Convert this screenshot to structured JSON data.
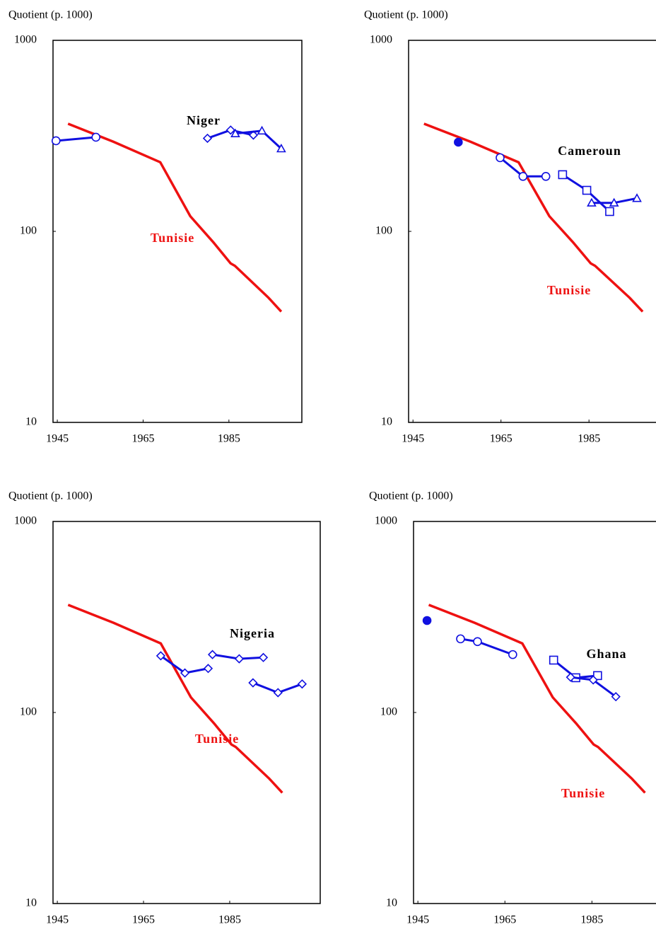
{
  "chart_data": [
    {
      "type": "line",
      "y_label": "Quotient (p. 1000)",
      "log_scale": true,
      "ylim": [
        10,
        1000
      ],
      "yticks": [
        10,
        100,
        1000
      ],
      "xlim": [
        1944,
        2002
      ],
      "xticks": [
        1945,
        1965,
        1985
      ],
      "annotations": [
        "Niger",
        "Tunisie"
      ],
      "series": [
        {
          "color": "#ee1111",
          "marker": "none",
          "x": [
            1947.5,
            1958,
            1969,
            1976,
            1981.5,
            1985.4,
            1986.4,
            1994.2,
            1997.2
          ],
          "values": [
            366,
            295,
            230,
            120,
            87,
            68,
            66,
            45,
            38
          ]
        },
        {
          "color": "#1010e0",
          "marker": "circle",
          "x": [
            1944.7,
            1954
          ],
          "values": [
            298,
            311
          ]
        },
        {
          "color": "#1010e0",
          "marker": "diamond",
          "x": [
            1980,
            1985.4,
            1990.7
          ],
          "values": [
            307,
            339,
            319
          ]
        },
        {
          "color": "#1010e0",
          "marker": "triangle",
          "x": [
            1986.5,
            1992.7,
            1997.2
          ],
          "values": [
            325,
            336,
            271
          ]
        }
      ]
    },
    {
      "type": "line",
      "y_label": "Quotient (p. 1000)",
      "log_scale": true,
      "ylim": [
        10,
        1000
      ],
      "yticks": [
        10,
        100,
        1000
      ],
      "xlim": [
        1944,
        2002
      ],
      "xticks": [
        1945,
        1965,
        1985
      ],
      "annotations": [
        "Cameroun",
        "Tunisie"
      ],
      "series": [
        {
          "color": "#ee1111",
          "marker": "none",
          "x": [
            1947.5,
            1958,
            1969,
            1976,
            1981.5,
            1985.4,
            1986.4,
            1994.2,
            1997.2
          ],
          "values": [
            366,
            295,
            230,
            120,
            87,
            68,
            66,
            45,
            38
          ]
        },
        {
          "color": "#1010e0",
          "marker": "filled-circle",
          "x": [
            1955.3
          ],
          "values": [
            293
          ]
        },
        {
          "color": "#1010e0",
          "marker": "circle",
          "x": [
            1964.8,
            1970,
            1975.2
          ],
          "values": [
            243,
            194,
            194
          ]
        },
        {
          "color": "#1010e0",
          "marker": "square",
          "x": [
            1979,
            1984.5,
            1989.7
          ],
          "values": [
            198,
            164,
            127
          ]
        },
        {
          "color": "#1010e0",
          "marker": "triangle",
          "x": [
            1985.6,
            1990.7,
            1995.9
          ],
          "values": [
            141,
            141,
            149
          ]
        }
      ]
    },
    {
      "type": "line",
      "y_label": "Quotient (p. 1000)",
      "log_scale": true,
      "ylim": [
        10,
        1000
      ],
      "yticks": [
        10,
        100,
        1000
      ],
      "xlim": [
        1944,
        2006
      ],
      "xticks": [
        1945,
        1965,
        1985
      ],
      "annotations": [
        "Nigeria",
        "Tunisie"
      ],
      "series": [
        {
          "color": "#ee1111",
          "marker": "none",
          "x": [
            1947.5,
            1958,
            1969,
            1976,
            1981.5,
            1985.4,
            1986.4,
            1994.2,
            1997.2
          ],
          "values": [
            366,
            295,
            230,
            120,
            87,
            68,
            66,
            45,
            38
          ]
        },
        {
          "color": "#1010e0",
          "marker": "diamond",
          "x": [
            1969,
            1974.6,
            1980
          ],
          "values": [
            198,
            161,
            170
          ]
        },
        {
          "color": "#1010e0",
          "marker": "diamond",
          "x": [
            1981,
            1987.2,
            1992.8
          ],
          "values": [
            201,
            191,
            194
          ]
        },
        {
          "color": "#1010e0",
          "marker": "diamond",
          "x": [
            1990.4,
            1996.2,
            2001.8
          ],
          "values": [
            143,
            127,
            141
          ]
        }
      ]
    },
    {
      "type": "line",
      "y_label": "Quotient (p. 1000)",
      "log_scale": true,
      "ylim": [
        10,
        1000
      ],
      "yticks": [
        10,
        100,
        1000
      ],
      "xlim": [
        1944,
        2002
      ],
      "xticks": [
        1945,
        1965,
        1985
      ],
      "annotations": [
        "Ghana",
        "Tunisie"
      ],
      "series": [
        {
          "color": "#ee1111",
          "marker": "none",
          "x": [
            1947.5,
            1958,
            1969,
            1976,
            1981.5,
            1985.4,
            1986.4,
            1994.2,
            1997.2
          ],
          "values": [
            366,
            295,
            230,
            120,
            87,
            68,
            66,
            45,
            38
          ]
        },
        {
          "color": "#1010e0",
          "marker": "filled-circle",
          "x": [
            1947.1
          ],
          "values": [
            303
          ]
        },
        {
          "color": "#1010e0",
          "marker": "circle",
          "x": [
            1954.8,
            1958.7,
            1966.8
          ],
          "values": [
            243,
            235,
            201
          ]
        },
        {
          "color": "#1010e0",
          "marker": "square",
          "x": [
            1976.2,
            1981.3,
            1986.3
          ],
          "values": [
            188,
            152,
            156
          ]
        },
        {
          "color": "#1010e0",
          "marker": "diamond",
          "x": [
            1980.1,
            1985.3,
            1990.5
          ],
          "values": [
            153,
            148,
            121
          ]
        }
      ]
    }
  ]
}
